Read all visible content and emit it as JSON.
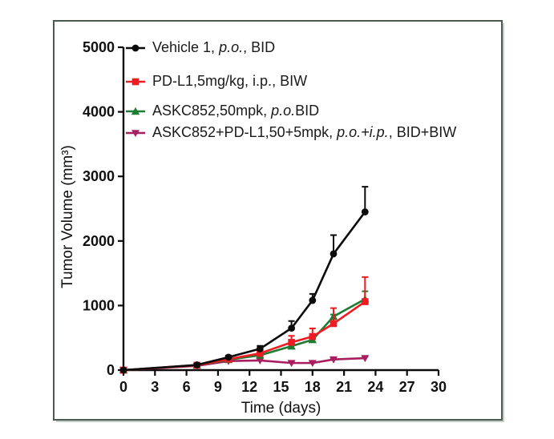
{
  "page": {
    "background": "#ffffff"
  },
  "panel": {
    "border_color": "#4b5a50",
    "shadow_color": "#c2cec6"
  },
  "chart_data": {
    "type": "line",
    "title": "",
    "xlabel": "Time (days)",
    "ylabel": "Tumor Volume (mm³)",
    "xlim": [
      0,
      30
    ],
    "ylim": [
      0,
      5000
    ],
    "xticks": [
      0,
      3,
      6,
      9,
      12,
      15,
      18,
      21,
      24,
      27,
      30
    ],
    "yticks": [
      0,
      1000,
      2000,
      3000,
      4000,
      5000
    ],
    "grid": false,
    "legend_position": "inside-top-left",
    "x": [
      0,
      7,
      10,
      13,
      16,
      18,
      20,
      23
    ],
    "series": [
      {
        "name": "Vehicle 1, p.o., BID",
        "color": "#0b0b0b",
        "marker": "circle",
        "values": [
          0,
          80,
          200,
          330,
          650,
          1080,
          1800,
          2450
        ],
        "err_up": [
          0,
          0,
          25,
          45,
          110,
          100,
          290,
          390
        ],
        "label_segments": [
          {
            "t": "Vehicle 1, "
          },
          {
            "t": "p.o.",
            "i": 1
          },
          {
            "t": ", BID"
          }
        ]
      },
      {
        "name": "PD-L1,5mg/kg, i.p., BIW",
        "color": "#ed1c24",
        "marker": "square",
        "values": [
          0,
          75,
          170,
          260,
          430,
          520,
          720,
          1060
        ],
        "err_up": [
          0,
          0,
          20,
          40,
          100,
          125,
          240,
          380
        ],
        "label_segments": [
          {
            "t": "PD-L1,5mg/kg, i.p., BIW"
          }
        ]
      },
      {
        "name": "ASKC852,50mpk, p.o.BID",
        "color": "#1e7b32",
        "marker": "triangle-up",
        "values": [
          0,
          75,
          160,
          230,
          370,
          470,
          830,
          1100
        ],
        "err_up": [
          0,
          0,
          15,
          30,
          40,
          50,
          30,
          120
        ],
        "label_segments": [
          {
            "t": "ASKC852,50mpk, "
          },
          {
            "t": "p.o.",
            "i": 1
          },
          {
            "t": "BID"
          }
        ]
      },
      {
        "name": "ASKC852+PD-L1,50+5mpk, p.o.+i.p., BID+BIW",
        "color": "#a81e5e",
        "marker": "triangle-down",
        "values": [
          0,
          65,
          140,
          150,
          110,
          110,
          165,
          185
        ],
        "err_up": [
          0,
          0,
          10,
          15,
          12,
          12,
          15,
          22
        ],
        "label_segments": [
          {
            "t": "ASKC852+PD-L1,50+5mpk, "
          },
          {
            "t": "p.o.+i.p.",
            "i": 1
          },
          {
            "t": ",  BID+BIW"
          }
        ]
      }
    ]
  }
}
